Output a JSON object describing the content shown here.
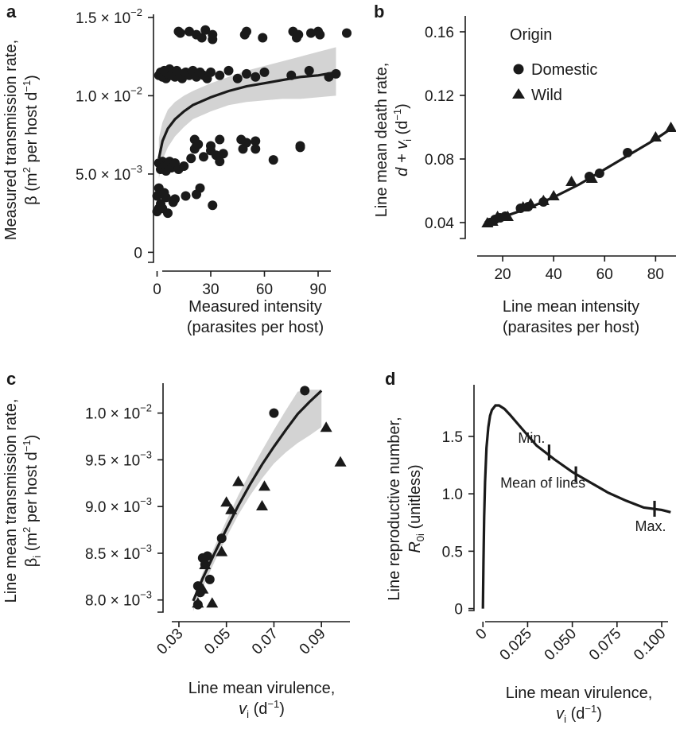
{
  "chart_data": [
    {
      "panel": "a",
      "type": "scatter",
      "ylabel_line1": "Measured transmission rate,",
      "ylabel_line2_pre": "β (m",
      "ylabel_line2_sup1": "2",
      "ylabel_line2_mid": " per host d",
      "ylabel_line2_sup2": "−1",
      "ylabel_line2_post": ")",
      "xlabel_line1": "Measured intensity",
      "xlabel_line2": "(parasites per host)",
      "xlim": [
        -2,
        110
      ],
      "ylim": [
        -0.0012,
        0.0152
      ],
      "xticks": [
        0,
        30,
        60,
        90
      ],
      "xtick_labels": [
        "0",
        "30",
        "60",
        "90"
      ],
      "yticks": [
        0,
        0.005,
        0.01,
        0.015
      ],
      "ytick_labels": [
        {
          "mant": "0",
          "exp": ""
        },
        {
          "mant": "5.0 × 10",
          "exp": "−3"
        },
        {
          "mant": "1.0 × 10",
          "exp": "−2"
        },
        {
          "mant": "1.5 × 10",
          "exp": "−2"
        }
      ],
      "points": [
        [
          0,
          0.0026
        ],
        [
          1,
          0.0028
        ],
        [
          2,
          0.0031
        ],
        [
          0,
          0.0036
        ],
        [
          1,
          0.0041
        ],
        [
          3,
          0.0028
        ],
        [
          5,
          0.0035
        ],
        [
          6,
          0.0025
        ],
        [
          4,
          0.0038
        ],
        [
          9,
          0.0032
        ],
        [
          10,
          0.0034
        ],
        [
          16,
          0.0036
        ],
        [
          22,
          0.0037
        ],
        [
          24,
          0.0041
        ],
        [
          31,
          0.003
        ],
        [
          1,
          0.0057
        ],
        [
          2,
          0.0053
        ],
        [
          3,
          0.0058
        ],
        [
          4,
          0.0055
        ],
        [
          5,
          0.0052
        ],
        [
          6,
          0.0056
        ],
        [
          7,
          0.0058
        ],
        [
          8,
          0.0054
        ],
        [
          10,
          0.0057
        ],
        [
          12,
          0.0053
        ],
        [
          15,
          0.0055
        ],
        [
          19,
          0.006
        ],
        [
          21,
          0.0066
        ],
        [
          22,
          0.0068
        ],
        [
          26,
          0.0061
        ],
        [
          30,
          0.0065
        ],
        [
          33,
          0.0062
        ],
        [
          35,
          0.0058
        ],
        [
          37,
          0.0063
        ],
        [
          48,
          0.0066
        ],
        [
          50,
          0.007
        ],
        [
          55,
          0.0066
        ],
        [
          65,
          0.0059
        ],
        [
          80,
          0.0068
        ],
        [
          21,
          0.0072
        ],
        [
          23,
          0.0069
        ],
        [
          30,
          0.0068
        ],
        [
          35,
          0.0072
        ],
        [
          47,
          0.0072
        ],
        [
          55,
          0.0071
        ],
        [
          80,
          0.0067
        ],
        [
          1,
          0.0113
        ],
        [
          2,
          0.0115
        ],
        [
          3,
          0.0112
        ],
        [
          4,
          0.0116
        ],
        [
          5,
          0.0111
        ],
        [
          6,
          0.0114
        ],
        [
          7,
          0.0117
        ],
        [
          8,
          0.0113
        ],
        [
          9,
          0.0115
        ],
        [
          10,
          0.0112
        ],
        [
          11,
          0.0116
        ],
        [
          13,
          0.0114
        ],
        [
          14,
          0.0111
        ],
        [
          16,
          0.0115
        ],
        [
          18,
          0.0113
        ],
        [
          20,
          0.0116
        ],
        [
          22,
          0.0112
        ],
        [
          24,
          0.0115
        ],
        [
          26,
          0.0113
        ],
        [
          28,
          0.0111
        ],
        [
          30,
          0.0115
        ],
        [
          35,
          0.0113
        ],
        [
          40,
          0.0116
        ],
        [
          45,
          0.0111
        ],
        [
          50,
          0.0114
        ],
        [
          55,
          0.0112
        ],
        [
          60,
          0.0115
        ],
        [
          75,
          0.0113
        ],
        [
          85,
          0.0116
        ],
        [
          96,
          0.0112
        ],
        [
          100,
          0.0114
        ],
        [
          12,
          0.0141
        ],
        [
          13,
          0.014
        ],
        [
          18,
          0.0141
        ],
        [
          22,
          0.0139
        ],
        [
          25,
          0.0137
        ],
        [
          27,
          0.0142
        ],
        [
          31,
          0.0139
        ],
        [
          31,
          0.0136
        ],
        [
          50,
          0.0141
        ],
        [
          49,
          0.0139
        ],
        [
          59,
          0.0137
        ],
        [
          76,
          0.0141
        ],
        [
          79,
          0.0139
        ],
        [
          78,
          0.0137
        ],
        [
          86,
          0.014
        ],
        [
          90,
          0.0141
        ],
        [
          91,
          0.0139
        ],
        [
          106,
          0.014
        ]
      ],
      "fit": {
        "x": [
          1,
          3,
          6,
          10,
          15,
          20,
          30,
          40,
          50,
          60,
          70,
          80,
          90,
          100
        ],
        "y": [
          0.006,
          0.0071,
          0.0079,
          0.0085,
          0.009,
          0.0094,
          0.0099,
          0.0103,
          0.0106,
          0.0108,
          0.011,
          0.0112,
          0.0113,
          0.0115
        ],
        "lower": [
          0.0047,
          0.0059,
          0.0067,
          0.0074,
          0.008,
          0.0085,
          0.009,
          0.0094,
          0.0096,
          0.0097,
          0.0098,
          0.0098,
          0.0099,
          0.01
        ],
        "upper": [
          0.0073,
          0.0083,
          0.0091,
          0.0096,
          0.01,
          0.0103,
          0.0108,
          0.0112,
          0.0116,
          0.0119,
          0.0122,
          0.0125,
          0.0128,
          0.0131
        ]
      }
    },
    {
      "panel": "b",
      "type": "scatter",
      "ylabel_line1": "Line mean death rate,",
      "ylabel_line2_pre": "d + v",
      "ylabel_line2_sub": "i",
      "ylabel_line2_mid": " (d",
      "ylabel_line2_sup": "−1",
      "ylabel_line2_post": ")",
      "xlabel_line1": "Line mean intensity",
      "xlabel_line2": "(parasites per host)",
      "xlim": [
        10,
        88
      ],
      "ylim": [
        0.03,
        0.17
      ],
      "xticks": [
        20,
        40,
        60,
        80
      ],
      "xtick_labels": [
        "20",
        "40",
        "60",
        "80"
      ],
      "yticks": [
        0.04,
        0.08,
        0.12,
        0.16
      ],
      "ytick_labels": [
        "0.04",
        "0.08",
        "0.12",
        "0.16"
      ],
      "legend_title": "Origin",
      "legend": [
        {
          "name": "Domestic",
          "marker": "circle"
        },
        {
          "name": "Wild",
          "marker": "triangle"
        }
      ],
      "domestic": [
        [
          15,
          0.04
        ],
        [
          17,
          0.042
        ],
        [
          19,
          0.043
        ],
        [
          21,
          0.044
        ],
        [
          27,
          0.049
        ],
        [
          30,
          0.05
        ],
        [
          36,
          0.053
        ],
        [
          54,
          0.069
        ],
        [
          58,
          0.071
        ],
        [
          69,
          0.084
        ]
      ],
      "wild": [
        [
          14,
          0.04
        ],
        [
          16,
          0.041
        ],
        [
          18,
          0.044
        ],
        [
          22,
          0.044
        ],
        [
          28,
          0.05
        ],
        [
          31,
          0.052
        ],
        [
          36,
          0.054
        ],
        [
          40,
          0.057
        ],
        [
          47,
          0.066
        ],
        [
          55,
          0.068
        ],
        [
          80,
          0.094
        ],
        [
          86,
          0.1
        ]
      ],
      "fit": {
        "x": [
          13,
          20,
          30,
          40,
          50,
          60,
          70,
          80,
          86
        ],
        "y": [
          0.04,
          0.0435,
          0.049,
          0.056,
          0.064,
          0.0735,
          0.083,
          0.0925,
          0.099
        ]
      }
    },
    {
      "panel": "c",
      "type": "scatter",
      "ylabel_line1": "Line mean transmission rate,",
      "ylabel_line2_pre": "β",
      "ylabel_line2_sub": "i",
      "ylabel_line2_mid": " (m",
      "ylabel_line2_sup1": "2",
      "ylabel_line2_mid2": " per host d",
      "ylabel_line2_sup2": "−1",
      "ylabel_line2_post": ")",
      "xlabel_line1": "Line mean virulence,",
      "xlabel_line2_pre": "v",
      "xlabel_line2_sub": "i",
      "xlabel_line2_mid": " (d",
      "xlabel_line2_sup": "−1",
      "xlabel_line2_post": ")",
      "xlim": [
        0.027,
        0.102
      ],
      "ylim": [
        0.00787,
        0.01032
      ],
      "xticks": [
        0.03,
        0.05,
        0.07,
        0.09
      ],
      "xtick_labels": [
        "0.03",
        "0.05",
        "0.07",
        "0.09"
      ],
      "yticks": [
        0.008,
        0.0085,
        0.009,
        0.0095,
        0.01
      ],
      "ytick_labels": [
        {
          "mant": "8.0 × 10",
          "exp": "−3"
        },
        {
          "mant": "8.5 × 10",
          "exp": "−3"
        },
        {
          "mant": "9.0 × 10",
          "exp": "−3"
        },
        {
          "mant": "9.5 × 10",
          "exp": "−3"
        },
        {
          "mant": "1.0 × 10",
          "exp": "−2"
        }
      ],
      "domestic": [
        [
          0.038,
          0.00795
        ],
        [
          0.038,
          0.00815
        ],
        [
          0.039,
          0.00808
        ],
        [
          0.04,
          0.00845
        ],
        [
          0.041,
          0.00838
        ],
        [
          0.042,
          0.00847
        ],
        [
          0.043,
          0.00822
        ],
        [
          0.048,
          0.00866
        ],
        [
          0.07,
          0.01
        ],
        [
          0.083,
          0.01024
        ]
      ],
      "wild": [
        [
          0.038,
          0.00797
        ],
        [
          0.04,
          0.00812
        ],
        [
          0.041,
          0.00838
        ],
        [
          0.044,
          0.00797
        ],
        [
          0.048,
          0.00852
        ],
        [
          0.05,
          0.00905
        ],
        [
          0.052,
          0.00897
        ],
        [
          0.055,
          0.00927
        ],
        [
          0.065,
          0.00901
        ],
        [
          0.066,
          0.00922
        ],
        [
          0.092,
          0.00985
        ],
        [
          0.098,
          0.00948
        ]
      ],
      "fit": {
        "x": [
          0.036,
          0.04,
          0.045,
          0.05,
          0.055,
          0.06,
          0.065,
          0.07,
          0.075,
          0.08,
          0.085,
          0.09
        ],
        "y": [
          0.00799,
          0.00823,
          0.0085,
          0.00876,
          0.00901,
          0.00924,
          0.00945,
          0.00964,
          0.00982,
          0.00999,
          0.01012,
          0.01024
        ],
        "lower": [
          0.00788,
          0.00813,
          0.00841,
          0.00867,
          0.00891,
          0.00912,
          0.0093,
          0.00946,
          0.00958,
          0.00968,
          0.00976,
          0.00985
        ],
        "upper": [
          0.00802,
          0.00829,
          0.00857,
          0.00885,
          0.00912,
          0.00937,
          0.0096,
          0.00982,
          0.01003,
          0.01023,
          0.01025,
          0.01025
        ]
      }
    },
    {
      "panel": "d",
      "type": "line",
      "ylabel_line1": "Line reproductive number,",
      "ylabel_line2_pre": "R",
      "ylabel_line2_sub": "0i",
      "ylabel_line2_post": " (unitless)",
      "xlabel_line1": "Line mean virulence,",
      "xlabel_line2_pre": "v",
      "xlabel_line2_sub": "i",
      "xlabel_line2_mid": " (d",
      "xlabel_line2_sup": "−1",
      "xlabel_line2_post": ")",
      "xlim": [
        -0.005,
        0.108
      ],
      "ylim": [
        -0.1,
        1.95
      ],
      "xticks": [
        0,
        0.025,
        0.05,
        0.075,
        0.1
      ],
      "xtick_labels": [
        "0",
        "0.025",
        "0.050",
        "0.075",
        "0.100"
      ],
      "yticks": [
        0,
        0.5,
        1.0,
        1.5
      ],
      "ytick_labels": [
        "0",
        "0.5",
        "1.0",
        "1.5"
      ],
      "curve": {
        "x": [
          0,
          0.0003,
          0.0007,
          0.0012,
          0.002,
          0.003,
          0.004,
          0.005,
          0.007,
          0.009,
          0.012,
          0.015,
          0.02,
          0.03,
          0.04,
          0.05,
          0.06,
          0.07,
          0.08,
          0.09,
          0.1,
          0.105
        ],
        "y": [
          0,
          0.4,
          0.8,
          1.1,
          1.4,
          1.58,
          1.68,
          1.73,
          1.77,
          1.77,
          1.74,
          1.69,
          1.6,
          1.42,
          1.3,
          1.19,
          1.1,
          1.01,
          0.94,
          0.88,
          0.86,
          0.84
        ]
      },
      "markers": [
        {
          "label": "Min.",
          "x": 0.037,
          "y": 1.36
        },
        {
          "label": "Mean of lines",
          "x": 0.052,
          "y": 1.17
        },
        {
          "label": "Max.",
          "x": 0.096,
          "y": 0.87
        }
      ]
    }
  ]
}
